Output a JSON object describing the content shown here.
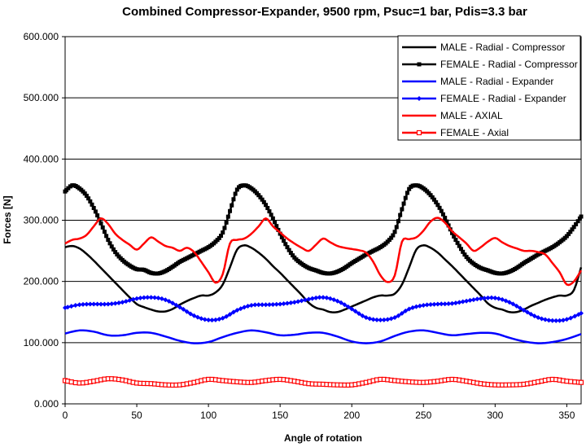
{
  "chart_data": {
    "type": "line",
    "title": "Combined Compressor-Expander, 9500 rpm, Psuc=1 bar, Pdis=3.3 bar",
    "xlabel": "Angle of rotation",
    "ylabel": "Forces [N]",
    "xlim": [
      0,
      360
    ],
    "ylim": [
      0,
      600
    ],
    "x_ticks": [
      "0",
      "50",
      "100",
      "150",
      "200",
      "250",
      "300",
      "350"
    ],
    "y_ticks": [
      "0.000",
      "100.000",
      "200.000",
      "300.000",
      "400.000",
      "500.000",
      "600.000"
    ],
    "grid": "horizontal",
    "legend_position": "top-right",
    "series": [
      {
        "name": "MALE - Radial - Compressor",
        "color": "#000000",
        "marker": "none",
        "x": [
          0,
          5,
          10,
          15,
          20,
          25,
          30,
          35,
          40,
          45,
          50,
          55,
          60,
          65,
          70,
          75,
          80,
          85,
          90,
          95,
          100,
          105,
          110,
          115,
          120,
          125,
          130,
          135,
          140,
          145,
          150,
          155,
          160,
          165,
          170,
          175,
          180,
          185,
          190,
          195,
          200,
          205,
          210,
          215,
          220,
          225,
          230,
          235,
          240,
          245,
          250,
          255,
          260,
          265,
          270,
          275,
          280,
          285,
          290,
          295,
          300,
          305,
          310,
          315,
          320,
          325,
          330,
          335,
          340,
          345,
          350,
          355,
          360
        ],
        "values": [
          256,
          258,
          254,
          245,
          234,
          222,
          210,
          198,
          186,
          174,
          163,
          158,
          154,
          151,
          151,
          155,
          162,
          168,
          173,
          177,
          177,
          182,
          195,
          223,
          252,
          259,
          255,
          247,
          237,
          225,
          214,
          202,
          190,
          178,
          165,
          157,
          154,
          150,
          150,
          154,
          159,
          164,
          169,
          174,
          177,
          177,
          180,
          195,
          223,
          252,
          259,
          255,
          247,
          236,
          225,
          213,
          201,
          189,
          177,
          164,
          157,
          154,
          150,
          150,
          154,
          160,
          165,
          170,
          174,
          177,
          177,
          186,
          223
        ]
      },
      {
        "name": "FEMALE - Radial - Compressor",
        "color": "#000000",
        "marker": "square",
        "x": [
          0,
          5,
          10,
          15,
          20,
          25,
          30,
          35,
          40,
          45,
          50,
          55,
          60,
          65,
          70,
          75,
          80,
          85,
          90,
          95,
          100,
          105,
          110,
          115,
          120,
          125,
          130,
          135,
          140,
          145,
          150,
          155,
          160,
          165,
          170,
          175,
          180,
          185,
          190,
          195,
          200,
          205,
          210,
          215,
          220,
          225,
          230,
          235,
          240,
          245,
          250,
          255,
          260,
          265,
          270,
          275,
          280,
          285,
          290,
          295,
          300,
          305,
          310,
          315,
          320,
          325,
          330,
          335,
          340,
          345,
          350,
          355,
          360
        ],
        "values": [
          347,
          357,
          352,
          340,
          320,
          295,
          268,
          248,
          235,
          226,
          220,
          219,
          214,
          213,
          217,
          224,
          232,
          238,
          244,
          250,
          256,
          265,
          280,
          315,
          350,
          357,
          352,
          341,
          325,
          303,
          278,
          256,
          239,
          229,
          222,
          218,
          214,
          213,
          216,
          222,
          230,
          237,
          244,
          250,
          256,
          265,
          281,
          318,
          351,
          357,
          352,
          341,
          325,
          304,
          279,
          258,
          240,
          229,
          222,
          218,
          214,
          213,
          216,
          222,
          230,
          237,
          244,
          250,
          256,
          264,
          274,
          289,
          306
        ]
      },
      {
        "name": "MALE - Radial - Expander",
        "color": "#0000ff",
        "marker": "none",
        "x": [
          0,
          10,
          20,
          30,
          40,
          50,
          60,
          70,
          80,
          90,
          100,
          110,
          120,
          130,
          140,
          150,
          160,
          170,
          180,
          190,
          200,
          210,
          220,
          230,
          240,
          250,
          260,
          270,
          280,
          290,
          300,
          310,
          320,
          330,
          340,
          350,
          360
        ],
        "values": [
          115,
          120,
          118,
          112,
          112,
          116,
          116,
          110,
          103,
          99,
          101,
          109,
          116,
          120,
          117,
          112,
          113,
          116,
          116,
          110,
          102,
          99,
          102,
          111,
          118,
          120,
          116,
          112,
          114,
          116,
          115,
          108,
          102,
          99,
          101,
          106,
          114
        ]
      },
      {
        "name": "FEMALE - Radial - Expander",
        "color": "#0000ff",
        "marker": "diamond",
        "x": [
          0,
          10,
          20,
          30,
          40,
          50,
          60,
          70,
          80,
          90,
          100,
          110,
          120,
          130,
          140,
          150,
          160,
          170,
          180,
          190,
          200,
          210,
          220,
          230,
          240,
          250,
          260,
          270,
          280,
          290,
          300,
          310,
          320,
          330,
          340,
          350,
          360
        ],
        "values": [
          157,
          162,
          163,
          163,
          166,
          172,
          174,
          170,
          158,
          144,
          137,
          140,
          153,
          161,
          162,
          163,
          166,
          171,
          174,
          168,
          155,
          141,
          137,
          141,
          155,
          161,
          163,
          164,
          168,
          172,
          173,
          166,
          153,
          141,
          136,
          138,
          148
        ]
      },
      {
        "name": "MALE - AXIAL",
        "color": "#ff0000",
        "marker": "none",
        "x": [
          0,
          5,
          10,
          15,
          20,
          25,
          30,
          35,
          40,
          45,
          50,
          55,
          60,
          65,
          70,
          75,
          80,
          85,
          90,
          95,
          100,
          105,
          110,
          115,
          120,
          125,
          130,
          135,
          140,
          145,
          150,
          155,
          160,
          165,
          170,
          175,
          180,
          185,
          190,
          195,
          200,
          205,
          210,
          215,
          220,
          225,
          230,
          235,
          240,
          245,
          250,
          255,
          260,
          265,
          270,
          275,
          280,
          285,
          290,
          295,
          300,
          305,
          310,
          315,
          320,
          325,
          330,
          335,
          340,
          345,
          350,
          355,
          360
        ],
        "values": [
          262,
          268,
          270,
          276,
          290,
          303,
          294,
          278,
          268,
          260,
          252,
          262,
          272,
          265,
          258,
          255,
          250,
          255,
          248,
          232,
          215,
          198,
          212,
          262,
          268,
          270,
          278,
          290,
          303,
          290,
          280,
          270,
          262,
          255,
          250,
          260,
          270,
          264,
          258,
          255,
          253,
          251,
          247,
          232,
          210,
          199,
          210,
          265,
          269,
          272,
          283,
          298,
          304,
          296,
          282,
          272,
          262,
          250,
          256,
          265,
          271,
          264,
          258,
          254,
          250,
          250,
          248,
          244,
          230,
          215,
          195,
          200,
          218
        ]
      },
      {
        "name": "FEMALE - Axial",
        "color": "#ff0000",
        "marker": "square-open",
        "x": [
          0,
          10,
          20,
          30,
          40,
          50,
          60,
          70,
          80,
          90,
          100,
          110,
          120,
          130,
          140,
          150,
          160,
          170,
          180,
          190,
          200,
          210,
          220,
          230,
          240,
          250,
          260,
          270,
          280,
          290,
          300,
          310,
          320,
          330,
          340,
          350,
          360
        ],
        "values": [
          38,
          34,
          37,
          41,
          39,
          34,
          33,
          31,
          31,
          35,
          40,
          38,
          36,
          35,
          38,
          40,
          37,
          33,
          32,
          31,
          31,
          35,
          40,
          38,
          36,
          35,
          37,
          40,
          37,
          33,
          31,
          31,
          32,
          36,
          40,
          37,
          35
        ]
      }
    ]
  }
}
